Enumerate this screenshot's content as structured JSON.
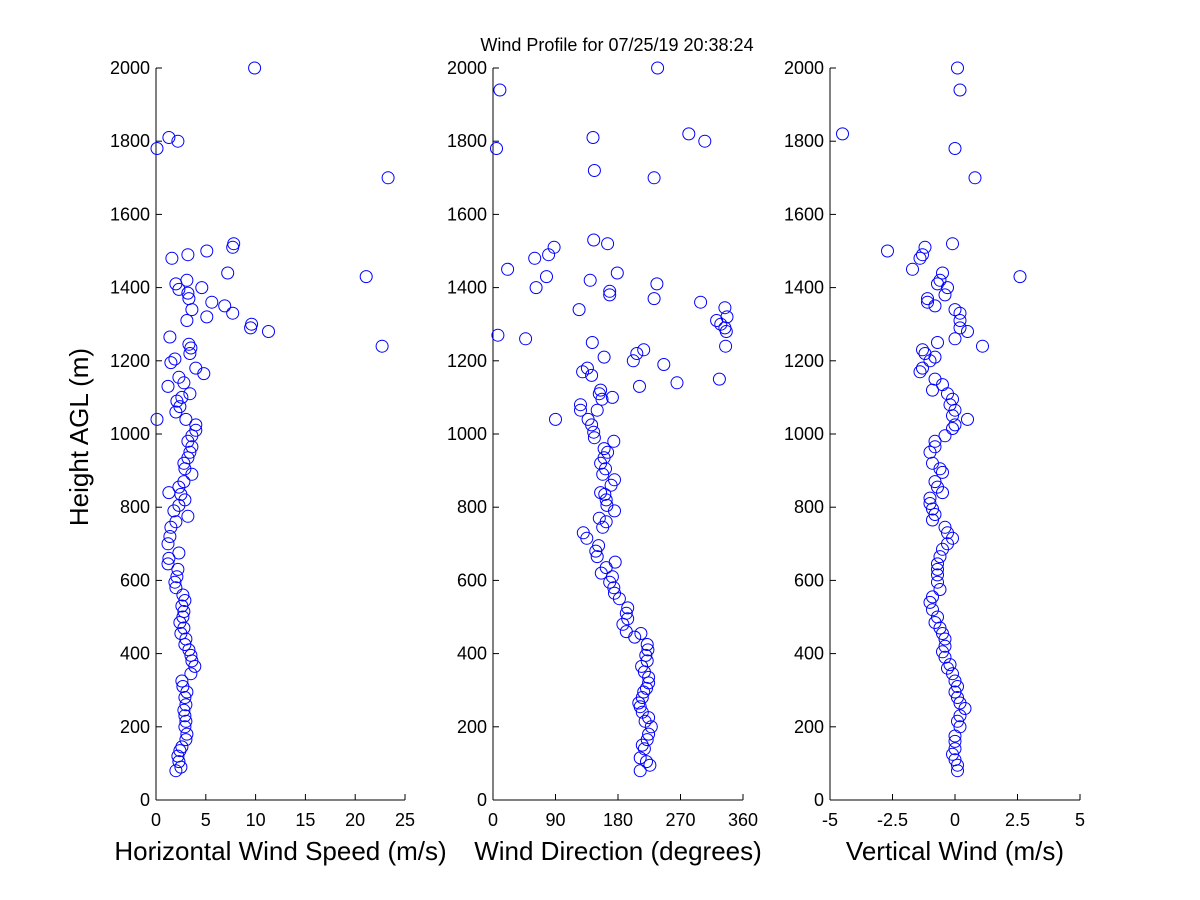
{
  "title": "Wind Profile for  07/25/19 20:38:24",
  "ylabel": "Height AGL (m)",
  "marker_color": "#0000ff",
  "chart_data": [
    {
      "type": "scatter",
      "xlabel": "Horizontal Wind Speed (m/s)",
      "xlim": [
        0,
        25
      ],
      "xticks": [
        0,
        5,
        10,
        15,
        20,
        25
      ],
      "xtick_labels": [
        "0",
        "5",
        "10",
        "15",
        "20",
        "25"
      ],
      "ylim": [
        0,
        2000
      ],
      "yticks": [
        0,
        200,
        400,
        600,
        800,
        1000,
        1200,
        1400,
        1600,
        1800,
        2000
      ],
      "grid": false,
      "points": [
        [
          2.0,
          80
        ],
        [
          2.5,
          90
        ],
        [
          2.3,
          105
        ],
        [
          2.2,
          120
        ],
        [
          2.4,
          135
        ],
        [
          2.6,
          145
        ],
        [
          3.0,
          165
        ],
        [
          3.1,
          180
        ],
        [
          2.9,
          200
        ],
        [
          3.0,
          215
        ],
        [
          2.9,
          230
        ],
        [
          2.8,
          245
        ],
        [
          3.0,
          260
        ],
        [
          2.9,
          280
        ],
        [
          3.1,
          295
        ],
        [
          2.7,
          310
        ],
        [
          2.6,
          325
        ],
        [
          3.5,
          345
        ],
        [
          3.9,
          365
        ],
        [
          3.6,
          380
        ],
        [
          3.5,
          395
        ],
        [
          3.3,
          410
        ],
        [
          2.9,
          425
        ],
        [
          3.0,
          440
        ],
        [
          2.5,
          455
        ],
        [
          2.8,
          470
        ],
        [
          2.4,
          485
        ],
        [
          2.7,
          500
        ],
        [
          2.8,
          515
        ],
        [
          2.6,
          530
        ],
        [
          2.9,
          545
        ],
        [
          2.7,
          560
        ],
        [
          2.0,
          580
        ],
        [
          1.9,
          595
        ],
        [
          2.1,
          610
        ],
        [
          2.2,
          630
        ],
        [
          1.2,
          645
        ],
        [
          1.3,
          660
        ],
        [
          2.3,
          675
        ],
        [
          1.2,
          700
        ],
        [
          1.4,
          720
        ],
        [
          1.5,
          745
        ],
        [
          2.0,
          760
        ],
        [
          3.2,
          775
        ],
        [
          1.8,
          790
        ],
        [
          2.3,
          805
        ],
        [
          2.9,
          820
        ],
        [
          2.5,
          835
        ],
        [
          1.3,
          840
        ],
        [
          2.3,
          855
        ],
        [
          2.8,
          870
        ],
        [
          3.6,
          890
        ],
        [
          2.9,
          905
        ],
        [
          2.8,
          920
        ],
        [
          3.2,
          935
        ],
        [
          3.4,
          950
        ],
        [
          3.6,
          965
        ],
        [
          3.2,
          980
        ],
        [
          3.6,
          995
        ],
        [
          4.0,
          1010
        ],
        [
          4.0,
          1025
        ],
        [
          3.0,
          1040
        ],
        [
          0.1,
          1040
        ],
        [
          2.0,
          1060
        ],
        [
          2.4,
          1075
        ],
        [
          2.1,
          1090
        ],
        [
          2.6,
          1100
        ],
        [
          3.4,
          1110
        ],
        [
          1.2,
          1130
        ],
        [
          2.8,
          1140
        ],
        [
          2.3,
          1155
        ],
        [
          4.8,
          1165
        ],
        [
          4.0,
          1180
        ],
        [
          1.5,
          1195
        ],
        [
          1.9,
          1205
        ],
        [
          3.4,
          1220
        ],
        [
          3.5,
          1235
        ],
        [
          3.3,
          1245
        ],
        [
          1.4,
          1265
        ],
        [
          11.3,
          1280
        ],
        [
          9.5,
          1290
        ],
        [
          9.6,
          1300
        ],
        [
          3.1,
          1310
        ],
        [
          5.1,
          1320
        ],
        [
          7.7,
          1330
        ],
        [
          3.6,
          1340
        ],
        [
          6.9,
          1350
        ],
        [
          5.6,
          1360
        ],
        [
          3.3,
          1370
        ],
        [
          3.2,
          1385
        ],
        [
          2.3,
          1395
        ],
        [
          4.6,
          1400
        ],
        [
          2.0,
          1410
        ],
        [
          3.1,
          1420
        ],
        [
          7.2,
          1440
        ],
        [
          1.6,
          1480
        ],
        [
          3.2,
          1490
        ],
        [
          5.1,
          1500
        ],
        [
          7.7,
          1510
        ],
        [
          7.8,
          1520
        ],
        [
          23.3,
          1700
        ],
        [
          0.1,
          1780
        ],
        [
          2.2,
          1800
        ],
        [
          1.3,
          1810
        ],
        [
          9.9,
          2000
        ],
        [
          21.1,
          1430
        ],
        [
          22.7,
          1240
        ]
      ]
    },
    {
      "type": "scatter",
      "xlabel": "Wind Direction (degrees)",
      "xlim": [
        0,
        360
      ],
      "xticks": [
        0,
        90,
        180,
        270,
        360
      ],
      "xtick_labels": [
        "0",
        "90",
        "180",
        "270",
        "360"
      ],
      "ylim": [
        0,
        2000
      ],
      "yticks": [
        0,
        200,
        400,
        600,
        800,
        1000,
        1200,
        1400,
        1600,
        1800,
        2000
      ],
      "grid": false,
      "points": [
        [
          212,
          80
        ],
        [
          226,
          95
        ],
        [
          221,
          105
        ],
        [
          212,
          115
        ],
        [
          218,
          140
        ],
        [
          215,
          150
        ],
        [
          222,
          165
        ],
        [
          224,
          180
        ],
        [
          228,
          200
        ],
        [
          219,
          215
        ],
        [
          224,
          225
        ],
        [
          215,
          240
        ],
        [
          212,
          255
        ],
        [
          210,
          265
        ],
        [
          215,
          280
        ],
        [
          217,
          295
        ],
        [
          221,
          305
        ],
        [
          224,
          320
        ],
        [
          224,
          335
        ],
        [
          218,
          350
        ],
        [
          214,
          365
        ],
        [
          222,
          380
        ],
        [
          220,
          395
        ],
        [
          223,
          410
        ],
        [
          222,
          425
        ],
        [
          204,
          445
        ],
        [
          213,
          455
        ],
        [
          192,
          460
        ],
        [
          187,
          480
        ],
        [
          194,
          495
        ],
        [
          192,
          510
        ],
        [
          194,
          525
        ],
        [
          182,
          550
        ],
        [
          175,
          565
        ],
        [
          174,
          580
        ],
        [
          168,
          595
        ],
        [
          172,
          610
        ],
        [
          156,
          620
        ],
        [
          163,
          635
        ],
        [
          176,
          650
        ],
        [
          150,
          665
        ],
        [
          148,
          680
        ],
        [
          152,
          695
        ],
        [
          135,
          715
        ],
        [
          130,
          730
        ],
        [
          158,
          745
        ],
        [
          163,
          760
        ],
        [
          153,
          770
        ],
        [
          175,
          790
        ],
        [
          164,
          805
        ],
        [
          163,
          820
        ],
        [
          161,
          835
        ],
        [
          155,
          840
        ],
        [
          170,
          860
        ],
        [
          175,
          875
        ],
        [
          158,
          890
        ],
        [
          162,
          905
        ],
        [
          155,
          920
        ],
        [
          160,
          935
        ],
        [
          165,
          950
        ],
        [
          160,
          960
        ],
        [
          174,
          980
        ],
        [
          146,
          990
        ],
        [
          145,
          1005
        ],
        [
          142,
          1025
        ],
        [
          137,
          1040
        ],
        [
          90,
          1040
        ],
        [
          150,
          1065
        ],
        [
          126,
          1065
        ],
        [
          126,
          1080
        ],
        [
          157,
          1095
        ],
        [
          172,
          1100
        ],
        [
          153,
          1110
        ],
        [
          155,
          1120
        ],
        [
          211,
          1130
        ],
        [
          265,
          1140
        ],
        [
          142,
          1160
        ],
        [
          129,
          1170
        ],
        [
          136,
          1180
        ],
        [
          246,
          1190
        ],
        [
          202,
          1200
        ],
        [
          160,
          1210
        ],
        [
          207,
          1220
        ],
        [
          217,
          1230
        ],
        [
          335,
          1240
        ],
        [
          143,
          1250
        ],
        [
          47,
          1260
        ],
        [
          7,
          1270
        ],
        [
          336,
          1280
        ],
        [
          334,
          1290
        ],
        [
          322,
          1310
        ],
        [
          337,
          1320
        ],
        [
          328,
          1300
        ],
        [
          334,
          1345
        ],
        [
          124,
          1340
        ],
        [
          299,
          1360
        ],
        [
          232,
          1370
        ],
        [
          168,
          1380
        ],
        [
          168,
          1390
        ],
        [
          62,
          1400
        ],
        [
          236,
          1410
        ],
        [
          140,
          1420
        ],
        [
          77,
          1430
        ],
        [
          179,
          1440
        ],
        [
          21,
          1450
        ],
        [
          60,
          1480
        ],
        [
          80,
          1490
        ],
        [
          88,
          1510
        ],
        [
          165,
          1520
        ],
        [
          145,
          1530
        ],
        [
          232,
          1700
        ],
        [
          146,
          1720
        ],
        [
          5,
          1780
        ],
        [
          144,
          1810
        ],
        [
          282,
          1820
        ],
        [
          305,
          1800
        ],
        [
          10,
          1940
        ],
        [
          237,
          2000
        ],
        [
          326,
          1150
        ]
      ]
    },
    {
      "type": "scatter",
      "xlabel": "Vertical Wind (m/s)",
      "xlim": [
        -5,
        5
      ],
      "xticks": [
        -5,
        -2.5,
        0,
        2.5,
        5
      ],
      "xtick_labels": [
        "-5",
        "-2.5",
        "0",
        "2.5",
        "5"
      ],
      "ylim": [
        0,
        2000
      ],
      "yticks": [
        0,
        200,
        400,
        600,
        800,
        1000,
        1200,
        1400,
        1600,
        1800,
        2000
      ],
      "grid": false,
      "points": [
        [
          0.1,
          80
        ],
        [
          0.1,
          95
        ],
        [
          0.0,
          110
        ],
        [
          -0.1,
          125
        ],
        [
          0.0,
          140
        ],
        [
          0.0,
          160
        ],
        [
          0.0,
          175
        ],
        [
          0.2,
          200
        ],
        [
          0.1,
          215
        ],
        [
          0.2,
          230
        ],
        [
          0.4,
          250
        ],
        [
          0.2,
          265
        ],
        [
          0.1,
          280
        ],
        [
          0.0,
          295
        ],
        [
          0.1,
          310
        ],
        [
          0.0,
          325
        ],
        [
          -0.1,
          345
        ],
        [
          -0.3,
          360
        ],
        [
          -0.2,
          370
        ],
        [
          -0.4,
          390
        ],
        [
          -0.5,
          405
        ],
        [
          -0.4,
          420
        ],
        [
          -0.4,
          440
        ],
        [
          -0.5,
          455
        ],
        [
          -0.6,
          470
        ],
        [
          -0.8,
          485
        ],
        [
          -0.7,
          500
        ],
        [
          -0.9,
          520
        ],
        [
          -1.0,
          540
        ],
        [
          -0.9,
          555
        ],
        [
          -0.6,
          575
        ],
        [
          -0.7,
          595
        ],
        [
          -0.7,
          615
        ],
        [
          -0.7,
          630
        ],
        [
          -0.7,
          645
        ],
        [
          -0.6,
          665
        ],
        [
          -0.5,
          685
        ],
        [
          -0.3,
          700
        ],
        [
          -0.1,
          715
        ],
        [
          -0.3,
          730
        ],
        [
          -0.4,
          745
        ],
        [
          -0.9,
          765
        ],
        [
          -0.8,
          780
        ],
        [
          -0.9,
          795
        ],
        [
          -1.0,
          810
        ],
        [
          -1.0,
          825
        ],
        [
          -0.5,
          840
        ],
        [
          -0.7,
          855
        ],
        [
          -0.8,
          870
        ],
        [
          -0.5,
          895
        ],
        [
          -0.6,
          905
        ],
        [
          -0.9,
          920
        ],
        [
          -1.0,
          950
        ],
        [
          -0.8,
          965
        ],
        [
          -0.8,
          980
        ],
        [
          -0.4,
          995
        ],
        [
          -0.1,
          1015
        ],
        [
          0.0,
          1025
        ],
        [
          0.5,
          1040
        ],
        [
          -0.1,
          1050
        ],
        [
          0.0,
          1065
        ],
        [
          -0.2,
          1080
        ],
        [
          -0.1,
          1095
        ],
        [
          -0.3,
          1110
        ],
        [
          -0.9,
          1120
        ],
        [
          -0.5,
          1135
        ],
        [
          -0.8,
          1150
        ],
        [
          -1.4,
          1170
        ],
        [
          -1.3,
          1180
        ],
        [
          -1.0,
          1200
        ],
        [
          -0.8,
          1210
        ],
        [
          -1.2,
          1220
        ],
        [
          -1.3,
          1230
        ],
        [
          1.1,
          1240
        ],
        [
          -0.7,
          1250
        ],
        [
          0.0,
          1260
        ],
        [
          0.5,
          1280
        ],
        [
          0.2,
          1290
        ],
        [
          0.2,
          1310
        ],
        [
          0.2,
          1330
        ],
        [
          0.0,
          1340
        ],
        [
          -0.8,
          1350
        ],
        [
          -1.1,
          1360
        ],
        [
          -1.1,
          1370
        ],
        [
          -0.4,
          1380
        ],
        [
          -0.3,
          1400
        ],
        [
          -0.7,
          1410
        ],
        [
          -0.6,
          1420
        ],
        [
          -0.5,
          1440
        ],
        [
          -1.7,
          1450
        ],
        [
          -1.4,
          1480
        ],
        [
          -1.3,
          1490
        ],
        [
          -2.7,
          1500
        ],
        [
          -1.2,
          1510
        ],
        [
          -0.1,
          1520
        ],
        [
          0.8,
          1700
        ],
        [
          0.0,
          1780
        ],
        [
          -4.5,
          1820
        ],
        [
          0.2,
          1940
        ],
        [
          0.1,
          2000
        ],
        [
          2.6,
          1430
        ]
      ]
    }
  ]
}
